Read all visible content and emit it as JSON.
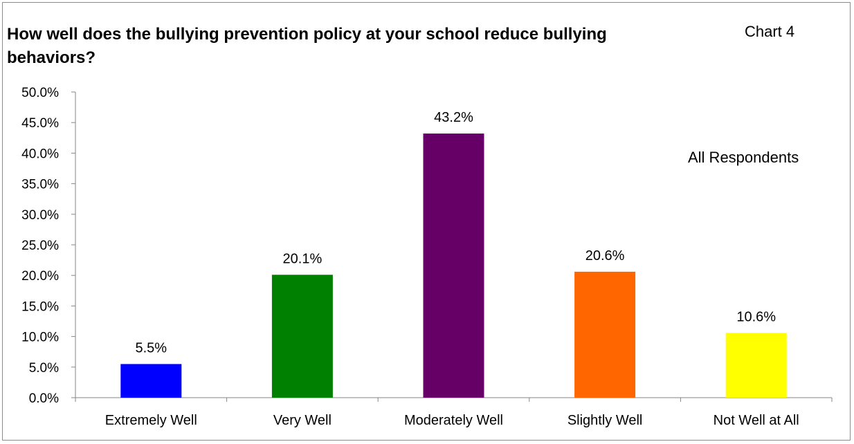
{
  "chart_data": {
    "type": "bar",
    "title": "How well does the bullying prevention policy at your school reduce bullying behaviors?",
    "chart_number": "Chart 4",
    "subtitle": "All Respondents",
    "categories": [
      "Extremely Well",
      "Very Well",
      "Moderately Well",
      "Slightly Well",
      "Not Well at All"
    ],
    "values": [
      5.5,
      20.1,
      43.2,
      20.6,
      10.6
    ],
    "value_labels": [
      "5.5%",
      "20.1%",
      "43.2%",
      "20.6%",
      "10.6%"
    ],
    "colors": [
      "#0000ff",
      "#008000",
      "#660066",
      "#ff6600",
      "#ffff00"
    ],
    "ylim": [
      0,
      50
    ],
    "yticks": [
      "0.0%",
      "5.0%",
      "10.0%",
      "15.0%",
      "20.0%",
      "25.0%",
      "30.0%",
      "35.0%",
      "40.0%",
      "45.0%",
      "50.0%"
    ],
    "grid": false,
    "legend": "none"
  }
}
